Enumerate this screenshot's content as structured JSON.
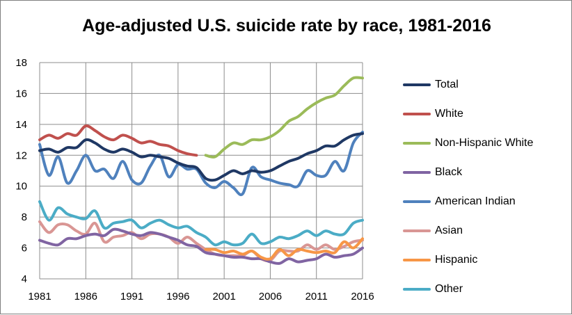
{
  "chart_data": {
    "type": "line",
    "title": "Age-adjusted U.S. suicide rate by race, 1981-2016",
    "xlabel": "",
    "ylabel": "",
    "xlim": [
      1981,
      2016
    ],
    "ylim": [
      4,
      18
    ],
    "x_ticks": [
      "1981",
      "1986",
      "1991",
      "1996",
      "2001",
      "2006",
      "2011",
      "2016"
    ],
    "y_ticks": [
      "4",
      "6",
      "8",
      "10",
      "12",
      "14",
      "16",
      "18"
    ],
    "grid": true,
    "legend_position": "right",
    "series": [
      {
        "name": "Total",
        "color": "#1f3864",
        "x": [
          1981,
          1982,
          1983,
          1984,
          1985,
          1986,
          1987,
          1988,
          1989,
          1990,
          1991,
          1992,
          1993,
          1994,
          1995,
          1996,
          1997,
          1998,
          1999,
          2000,
          2001,
          2002,
          2003,
          2004,
          2005,
          2006,
          2007,
          2008,
          2009,
          2010,
          2011,
          2012,
          2013,
          2014,
          2015,
          2016
        ],
        "y": [
          12.3,
          12.4,
          12.2,
          12.5,
          12.5,
          13.0,
          12.8,
          12.4,
          12.2,
          12.4,
          12.2,
          11.9,
          12.0,
          11.9,
          11.8,
          11.5,
          11.3,
          11.2,
          10.5,
          10.4,
          10.7,
          11.0,
          10.8,
          11.0,
          10.9,
          11.0,
          11.3,
          11.6,
          11.8,
          12.1,
          12.3,
          12.6,
          12.6,
          13.0,
          13.3,
          13.4
        ]
      },
      {
        "name": "White",
        "color": "#c0504d",
        "x": [
          1981,
          1982,
          1983,
          1984,
          1985,
          1986,
          1987,
          1988,
          1989,
          1990,
          1991,
          1992,
          1993,
          1994,
          1995,
          1996,
          1997,
          1998
        ],
        "y": [
          13.0,
          13.3,
          13.1,
          13.4,
          13.3,
          13.9,
          13.6,
          13.2,
          13.0,
          13.3,
          13.1,
          12.8,
          12.9,
          12.7,
          12.6,
          12.3,
          12.1,
          12.0
        ]
      },
      {
        "name": "Non-Hispanic White",
        "color": "#9bbb59",
        "x": [
          1999,
          2000,
          2001,
          2002,
          2003,
          2004,
          2005,
          2006,
          2007,
          2008,
          2009,
          2010,
          2011,
          2012,
          2013,
          2014,
          2015,
          2016
        ],
        "y": [
          12.0,
          11.9,
          12.4,
          12.8,
          12.7,
          13.0,
          13.0,
          13.2,
          13.6,
          14.2,
          14.5,
          15.0,
          15.4,
          15.7,
          15.9,
          16.5,
          17.0,
          17.0
        ]
      },
      {
        "name": "Black",
        "color": "#8064a2",
        "x": [
          1981,
          1982,
          1983,
          1984,
          1985,
          1986,
          1987,
          1988,
          1989,
          1990,
          1991,
          1992,
          1993,
          1994,
          1995,
          1996,
          1997,
          1998,
          1999,
          2000,
          2001,
          2002,
          2003,
          2004,
          2005,
          2006,
          2007,
          2008,
          2009,
          2010,
          2011,
          2012,
          2013,
          2014,
          2015,
          2016
        ],
        "y": [
          6.5,
          6.3,
          6.2,
          6.6,
          6.6,
          6.8,
          6.9,
          6.8,
          7.2,
          7.1,
          6.9,
          6.8,
          7.0,
          6.9,
          6.7,
          6.5,
          6.2,
          6.1,
          5.7,
          5.6,
          5.5,
          5.4,
          5.4,
          5.3,
          5.3,
          5.1,
          5.0,
          5.3,
          5.1,
          5.2,
          5.3,
          5.6,
          5.4,
          5.5,
          5.6,
          6.0
        ]
      },
      {
        "name": "American Indian",
        "color": "#4f81bd",
        "x": [
          1981,
          1982,
          1983,
          1984,
          1985,
          1986,
          1987,
          1988,
          1989,
          1990,
          1991,
          1992,
          1993,
          1994,
          1995,
          1996,
          1997,
          1998,
          1999,
          2000,
          2001,
          2002,
          2003,
          2004,
          2005,
          2006,
          2007,
          2008,
          2009,
          2010,
          2011,
          2012,
          2013,
          2014,
          2015,
          2016
        ],
        "y": [
          12.7,
          10.7,
          11.9,
          10.2,
          11.0,
          12.0,
          11.0,
          11.1,
          10.5,
          11.6,
          10.4,
          10.2,
          11.3,
          12.0,
          10.6,
          11.4,
          11.1,
          11.1,
          10.2,
          9.9,
          10.3,
          9.9,
          9.5,
          11.2,
          10.6,
          10.4,
          10.2,
          10.1,
          10.0,
          11.0,
          10.7,
          10.7,
          11.6,
          11.0,
          12.8,
          13.5
        ]
      },
      {
        "name": "Asian",
        "color": "#d99694",
        "x": [
          1981,
          1982,
          1983,
          1984,
          1985,
          1986,
          1987,
          1988,
          1989,
          1990,
          1991,
          1992,
          1993,
          1994,
          1995,
          1996,
          1997,
          1998,
          1999,
          2000,
          2001,
          2002,
          2003,
          2004,
          2005,
          2006,
          2007,
          2008,
          2009,
          2010,
          2011,
          2012,
          2013,
          2014,
          2015,
          2016
        ],
        "y": [
          7.7,
          7.0,
          7.5,
          7.5,
          7.1,
          6.9,
          7.6,
          6.4,
          6.7,
          6.8,
          7.0,
          6.6,
          6.9,
          6.9,
          6.7,
          6.3,
          6.7,
          6.3,
          5.9,
          5.6,
          5.5,
          5.5,
          5.5,
          5.8,
          5.3,
          5.2,
          5.8,
          5.8,
          5.8,
          6.2,
          5.9,
          6.2,
          5.9,
          6.1,
          6.4,
          6.5
        ]
      },
      {
        "name": "Hispanic",
        "color": "#f79646",
        "x": [
          1999,
          2000,
          2001,
          2002,
          2003,
          2004,
          2005,
          2006,
          2007,
          2008,
          2009,
          2010,
          2011,
          2012,
          2013,
          2014,
          2015,
          2016
        ],
        "y": [
          5.9,
          5.9,
          5.7,
          5.8,
          5.6,
          5.8,
          5.4,
          5.3,
          5.9,
          5.5,
          5.9,
          5.8,
          5.7,
          5.8,
          5.7,
          6.4,
          6.0,
          6.6
        ]
      },
      {
        "name": "Other",
        "color": "#4bacc6",
        "x": [
          1981,
          1982,
          1983,
          1984,
          1985,
          1986,
          1987,
          1988,
          1989,
          1990,
          1991,
          1992,
          1993,
          1994,
          1995,
          1996,
          1997,
          1998,
          1999,
          2000,
          2001,
          2002,
          2003,
          2004,
          2005,
          2006,
          2007,
          2008,
          2009,
          2010,
          2011,
          2012,
          2013,
          2014,
          2015,
          2016
        ],
        "y": [
          9.0,
          7.8,
          8.6,
          8.2,
          8.0,
          7.9,
          8.4,
          7.3,
          7.6,
          7.7,
          7.8,
          7.3,
          7.6,
          7.8,
          7.5,
          7.3,
          7.4,
          7.0,
          6.7,
          6.2,
          6.4,
          6.2,
          6.3,
          6.9,
          6.3,
          6.4,
          6.7,
          6.6,
          6.8,
          7.1,
          6.8,
          7.1,
          6.9,
          6.9,
          7.6,
          7.8
        ]
      }
    ]
  }
}
